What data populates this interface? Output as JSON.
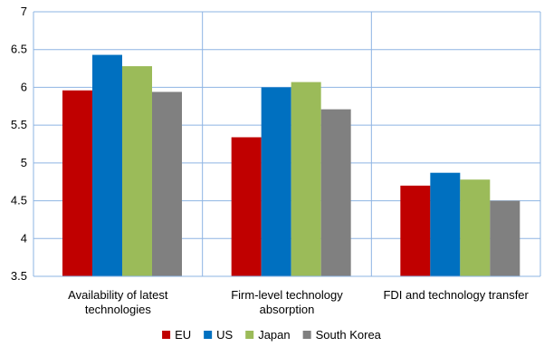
{
  "chart_data": {
    "type": "bar",
    "categories": [
      [
        "Availability of latest",
        "technologies"
      ],
      [
        "Firm-level technology",
        "absorption"
      ],
      [
        "FDI and technology transfer"
      ]
    ],
    "series": [
      {
        "name": "EU",
        "color": "#C00000",
        "values": [
          5.96,
          5.34,
          4.7
        ]
      },
      {
        "name": "US",
        "color": "#0070C0",
        "values": [
          6.43,
          6.0,
          4.87
        ]
      },
      {
        "name": "Japan",
        "color": "#9BBB59",
        "values": [
          6.28,
          6.07,
          4.78
        ]
      },
      {
        "name": "South Korea",
        "color": "#808080",
        "values": [
          5.94,
          5.71,
          4.5
        ]
      }
    ],
    "ylim": [
      3.5,
      7
    ],
    "yticks": [
      "3.5",
      "4",
      "4.5",
      "5",
      "5.5",
      "6",
      "6.5",
      "7"
    ],
    "grid": true,
    "legend_position": "bottom"
  }
}
